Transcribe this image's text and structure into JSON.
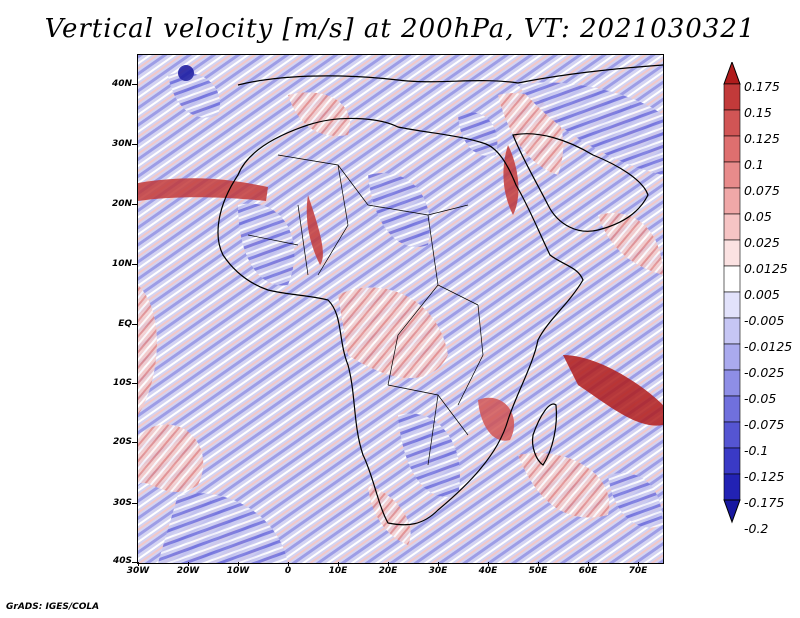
{
  "title": "Vertical velocity [m/s] at 200hPa, VT: 2021030321",
  "footer": "GrADS: IGES/COLA",
  "map": {
    "lat_labels": [
      "40N",
      "30N",
      "20N",
      "10N",
      "EQ",
      "10S",
      "20S",
      "30S",
      "40S"
    ],
    "lon_labels": [
      "30W",
      "20W",
      "10W",
      "0",
      "10E",
      "20E",
      "30E",
      "40E",
      "50E",
      "60E",
      "70E"
    ],
    "lon_range": [
      -30,
      75
    ],
    "lat_range": [
      -40,
      45
    ]
  },
  "colorbar": {
    "labels": [
      "0.175",
      "0.15",
      "0.125",
      "0.1",
      "0.075",
      "0.05",
      "0.025",
      "0.0125",
      "0.005",
      "-0.005",
      "-0.0125",
      "-0.025",
      "-0.05",
      "-0.075",
      "-0.1",
      "-0.125",
      "-0.175",
      "-0.2"
    ],
    "colors": [
      "#b01c1c",
      "#c23a3a",
      "#d15555",
      "#de6f6f",
      "#e88b8b",
      "#f0a8a8",
      "#f6c4c4",
      "#fbe2e2",
      "#ffffff",
      "#e2e2fb",
      "#c6c6f4",
      "#aaaaee",
      "#8e8ee6",
      "#7070dd",
      "#5555d2",
      "#3a3ac6",
      "#2222b4",
      "#1818a0"
    ]
  },
  "colors": {
    "positive": "#c23a3a",
    "negative": "#3a3ac6",
    "background_field": "#d7d7f3",
    "coastline": "#000000"
  }
}
